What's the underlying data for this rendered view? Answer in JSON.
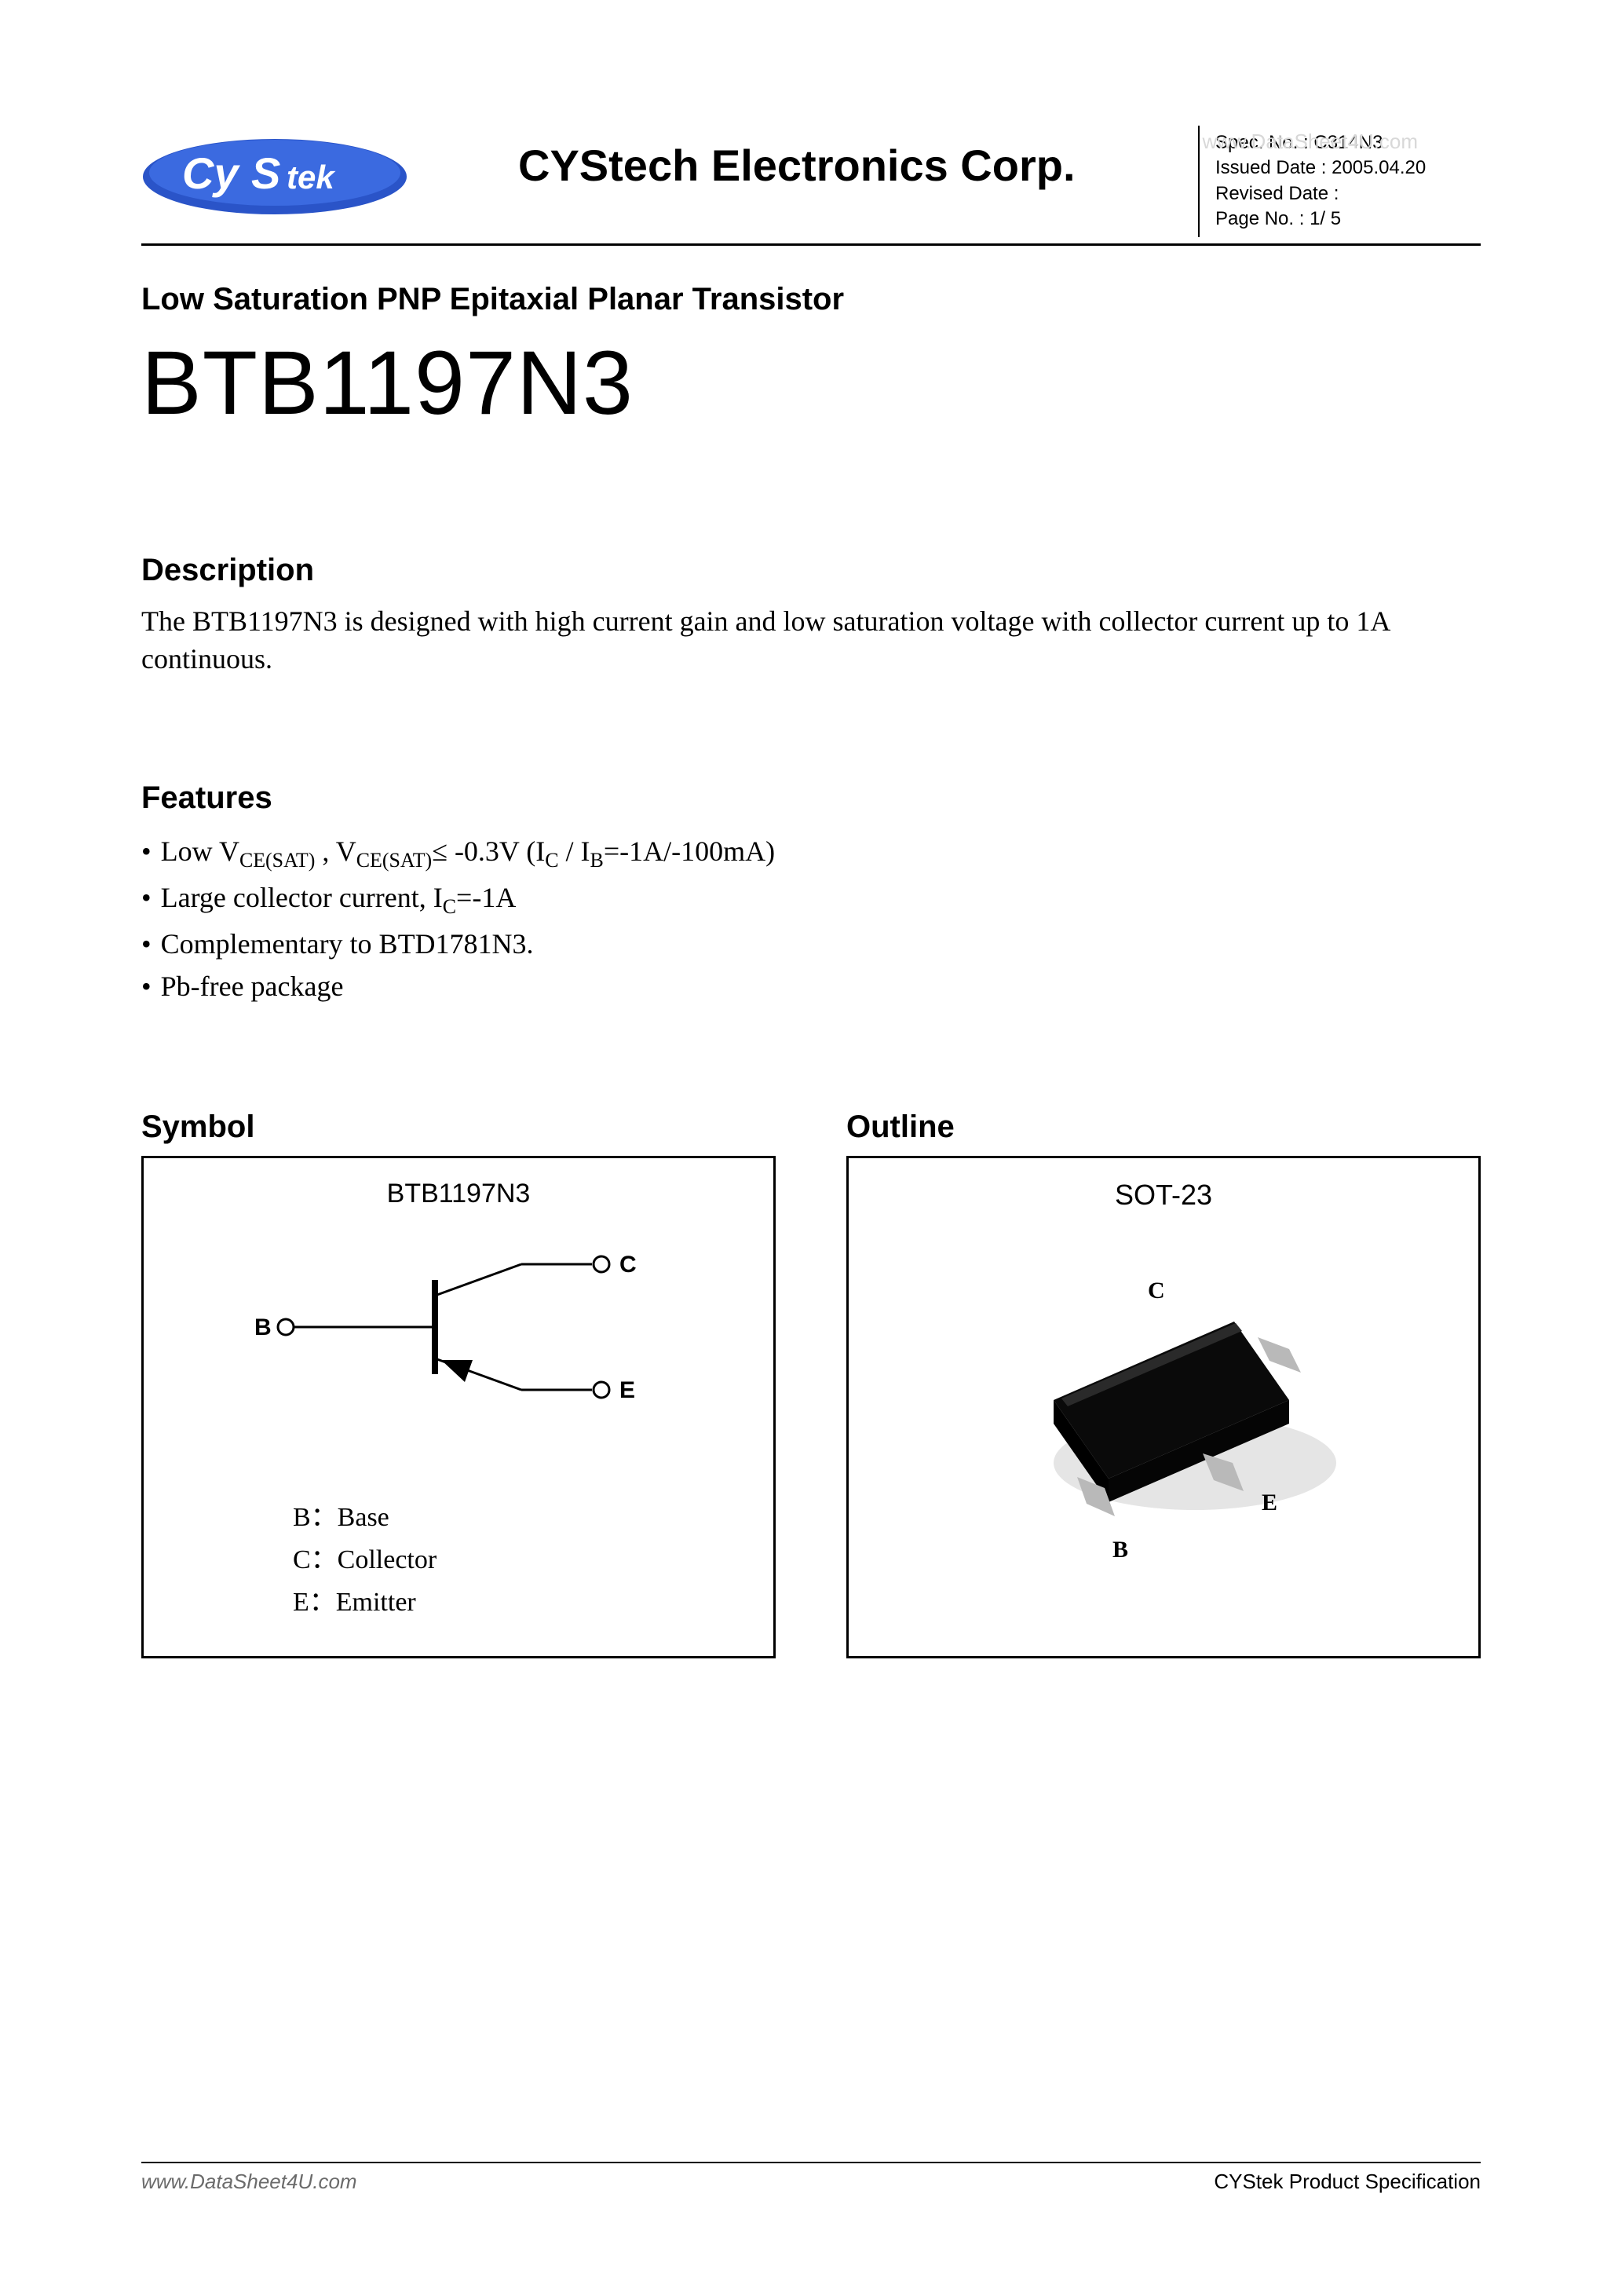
{
  "watermark_top": "www.DataSheet4U.com",
  "header": {
    "logo_text": "CyStek",
    "logo_bg": "#2a54c8",
    "logo_fg": "#ffffff",
    "company": "CYStech Electronics Corp.",
    "spec": {
      "spec_no_label": "Spec. No. :",
      "spec_no": "C314N3",
      "issued_label": "Issued Date :",
      "issued": "2005.04.20",
      "revised_label": "Revised Date :",
      "revised": "",
      "page_label": "Page No. :",
      "page": "1/ 5"
    }
  },
  "subtitle": "Low Saturation PNP Epitaxial Planar Transistor",
  "part_number": "BTB1197N3",
  "description": {
    "heading": "Description",
    "text": "The BTB1197N3 is designed with high current gain and low saturation voltage with collector current up to 1A continuous."
  },
  "features": {
    "heading": "Features",
    "items_html": [
      "Low V<span class=\"sub\">CE(SAT)</span> , V<span class=\"sub\">CE(SAT)</span>≤ -0.3V (I<span class=\"sub\">C</span> / I<span class=\"sub\">B</span>=-1A/-100mA)",
      "Large collector current, I<span class=\"sub\">C</span>=-1A",
      "Complementary to BTD1781N3.",
      "Pb-free package"
    ]
  },
  "symbol": {
    "heading": "Symbol",
    "label": "BTB1197N3",
    "pins": {
      "b": "B",
      "c": "C",
      "e": "E"
    },
    "legend": {
      "b": "B：Base",
      "c": "C：Collector",
      "e": "E：Emitter"
    },
    "stroke": "#000000",
    "stroke_width": 3
  },
  "outline": {
    "heading": "Outline",
    "package": "SOT-23",
    "pin_c": "C",
    "pin_b": "B",
    "pin_e": "E",
    "body_color": "#0a0a0a",
    "lead_color": "#b9b9b9",
    "shadow_color": "#cfcfcf"
  },
  "footer": {
    "left": "www.DataSheet4U.com",
    "right": "CYStek Product Specification"
  }
}
